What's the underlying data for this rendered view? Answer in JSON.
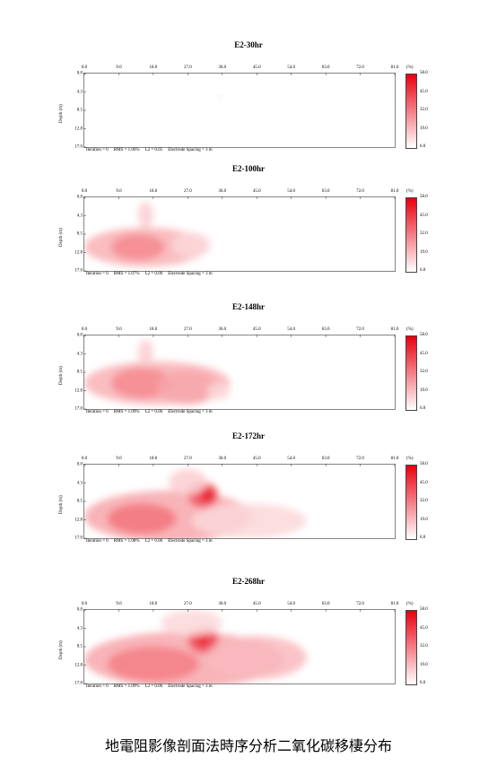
{
  "chart_data": [
    {
      "type": "heatmap",
      "title": "E2-30hr",
      "x_ticks": [
        "0.0",
        "9.0",
        "18.0",
        "27.0",
        "36.0",
        "45.0",
        "54.0",
        "63.0",
        "72.0",
        "81.0"
      ],
      "y_ticks": [
        "0.0",
        "4.3",
        "8.5",
        "12.8",
        "17.0"
      ],
      "ylabel": "Depth (m)",
      "xlim": [
        0,
        81
      ],
      "ylim": [
        0,
        17
      ],
      "colorbar": {
        "unit": "(%)",
        "ticks": [
          "58.0",
          "45.0",
          "32.0",
          "19.0",
          "6.0"
        ],
        "range": [
          6,
          58
        ]
      },
      "footer": {
        "iteration": "Iteration = 6",
        "rms": "RMS = 1.06%",
        "l2": "L2 = 0.05",
        "spacing": "Electrode Spacing = 3 m"
      },
      "anomalies": [
        {
          "x": 35.5,
          "y": 5.5,
          "rx": 0.8,
          "ry": 0.7,
          "value": 10
        }
      ]
    },
    {
      "type": "heatmap",
      "title": "E2-100hr",
      "x_ticks": [
        "0.0",
        "9.0",
        "18.0",
        "27.0",
        "36.0",
        "45.0",
        "54.0",
        "63.0",
        "72.0",
        "81.0"
      ],
      "y_ticks": [
        "0.0",
        "4.3",
        "8.5",
        "12.8",
        "17.0"
      ],
      "ylabel": "Depth (m)",
      "xlim": [
        0,
        81
      ],
      "ylim": [
        0,
        17
      ],
      "colorbar": {
        "unit": "(%)",
        "ticks": [
          "58.0",
          "45.0",
          "32.0",
          "19.0",
          "6.0"
        ],
        "range": [
          6,
          58
        ]
      },
      "footer": {
        "iteration": "Iteration = 6",
        "rms": "RMS = 1.07%",
        "l2": "L2 = 0.06",
        "spacing": "Electrode Spacing = 3 m"
      },
      "anomalies": [
        {
          "x": 16,
          "y": 11.5,
          "rx": 16,
          "ry": 4.5,
          "value": 22
        },
        {
          "x": 14,
          "y": 11.5,
          "rx": 7,
          "ry": 3,
          "value": 30
        },
        {
          "x": 16,
          "y": 4,
          "rx": 2,
          "ry": 3,
          "value": 16
        },
        {
          "x": 28,
          "y": 11,
          "rx": 5,
          "ry": 3,
          "value": 14
        }
      ]
    },
    {
      "type": "heatmap",
      "title": "E2-148hr",
      "x_ticks": [
        "0.0",
        "9.0",
        "18.0",
        "27.0",
        "36.0",
        "45.0",
        "54.0",
        "63.0",
        "72.0",
        "81.0"
      ],
      "y_ticks": [
        "0.0",
        "4.3",
        "8.5",
        "12.8",
        "17.0"
      ],
      "ylabel": "Depth (m)",
      "xlim": [
        0,
        81
      ],
      "ylim": [
        0,
        17
      ],
      "colorbar": {
        "unit": "(%)",
        "ticks": [
          "58.0",
          "45.0",
          "32.0",
          "19.0",
          "6.0"
        ],
        "range": [
          6,
          58
        ]
      },
      "footer": {
        "iteration": "Iteration = 6",
        "rms": "RMS = 1.09%",
        "l2": "L2 = 0.06",
        "spacing": "Electrode Spacing = 3 m"
      },
      "anomalies": [
        {
          "x": 19,
          "y": 11,
          "rx": 19,
          "ry": 5,
          "value": 22
        },
        {
          "x": 15,
          "y": 11,
          "rx": 8,
          "ry": 3.5,
          "value": 30
        },
        {
          "x": 27,
          "y": 12,
          "rx": 8,
          "ry": 4,
          "value": 24
        },
        {
          "x": 16,
          "y": 4,
          "rx": 2,
          "ry": 3,
          "value": 16
        },
        {
          "x": 35,
          "y": 13,
          "rx": 3,
          "ry": 2,
          "value": 14
        }
      ]
    },
    {
      "type": "heatmap",
      "title": "E2-172hr",
      "x_ticks": [
        "0.0",
        "9.0",
        "18.0",
        "27.0",
        "36.0",
        "45.0",
        "54.0",
        "63.0",
        "72.0",
        "81.0"
      ],
      "y_ticks": [
        "0.0",
        "4.3",
        "8.5",
        "12.8",
        "17.0"
      ],
      "ylabel": "Depth (m)",
      "xlim": [
        0,
        81
      ],
      "ylim": [
        0,
        17
      ],
      "colorbar": {
        "unit": "(%)",
        "ticks": [
          "58.0",
          "45.0",
          "32.0",
          "19.0",
          "6.0"
        ],
        "range": [
          6,
          58
        ]
      },
      "footer": {
        "iteration": "Iteration = 6",
        "rms": "RMS = 1.08%",
        "l2": "L2 = 0.06",
        "spacing": "Electrode Spacing = 3 m"
      },
      "anomalies": [
        {
          "x": 22,
          "y": 12,
          "rx": 22,
          "ry": 6,
          "value": 24
        },
        {
          "x": 15,
          "y": 12.5,
          "rx": 9,
          "ry": 3.5,
          "value": 34
        },
        {
          "x": 31,
          "y": 7,
          "rx": 4,
          "ry": 3,
          "value": 40
        },
        {
          "x": 32,
          "y": 7,
          "rx": 2,
          "ry": 1.6,
          "value": 52
        },
        {
          "x": 43,
          "y": 13,
          "rx": 15,
          "ry": 4,
          "value": 14
        },
        {
          "x": 27,
          "y": 4,
          "rx": 5,
          "ry": 3,
          "value": 16
        }
      ]
    },
    {
      "type": "heatmap",
      "title": "E2-268hr",
      "x_ticks": [
        "0.0",
        "9.0",
        "18.0",
        "27.0",
        "36.0",
        "45.0",
        "54.0",
        "63.0",
        "72.0",
        "81.0"
      ],
      "y_ticks": [
        "0.0",
        "4.3",
        "8.5",
        "12.8",
        "17.0"
      ],
      "ylabel": "Depth (m)",
      "xlim": [
        0,
        81
      ],
      "ylim": [
        0,
        17
      ],
      "colorbar": {
        "unit": "(%)",
        "ticks": [
          "58.0",
          "45.0",
          "32.0",
          "19.0",
          "6.0"
        ],
        "range": [
          6,
          58
        ]
      },
      "footer": {
        "iteration": "Iteration = 6",
        "rms": "RMS = 1.09%",
        "l2": "L2 = 0.06",
        "spacing": "Electrode Spacing = 3 m"
      },
      "anomalies": [
        {
          "x": 26,
          "y": 11.5,
          "rx": 26,
          "ry": 6.5,
          "value": 24
        },
        {
          "x": 18,
          "y": 12.5,
          "rx": 12,
          "ry": 4,
          "value": 32
        },
        {
          "x": 31,
          "y": 7,
          "rx": 4,
          "ry": 3,
          "value": 40
        },
        {
          "x": 31,
          "y": 7,
          "rx": 2,
          "ry": 1.5,
          "value": 50
        },
        {
          "x": 45,
          "y": 11,
          "rx": 13,
          "ry": 5,
          "value": 20
        },
        {
          "x": 28,
          "y": 3,
          "rx": 8,
          "ry": 3,
          "value": 14
        }
      ]
    }
  ],
  "caption": "地電阻影像剖面法時序分析二氧化碳移棲分布"
}
